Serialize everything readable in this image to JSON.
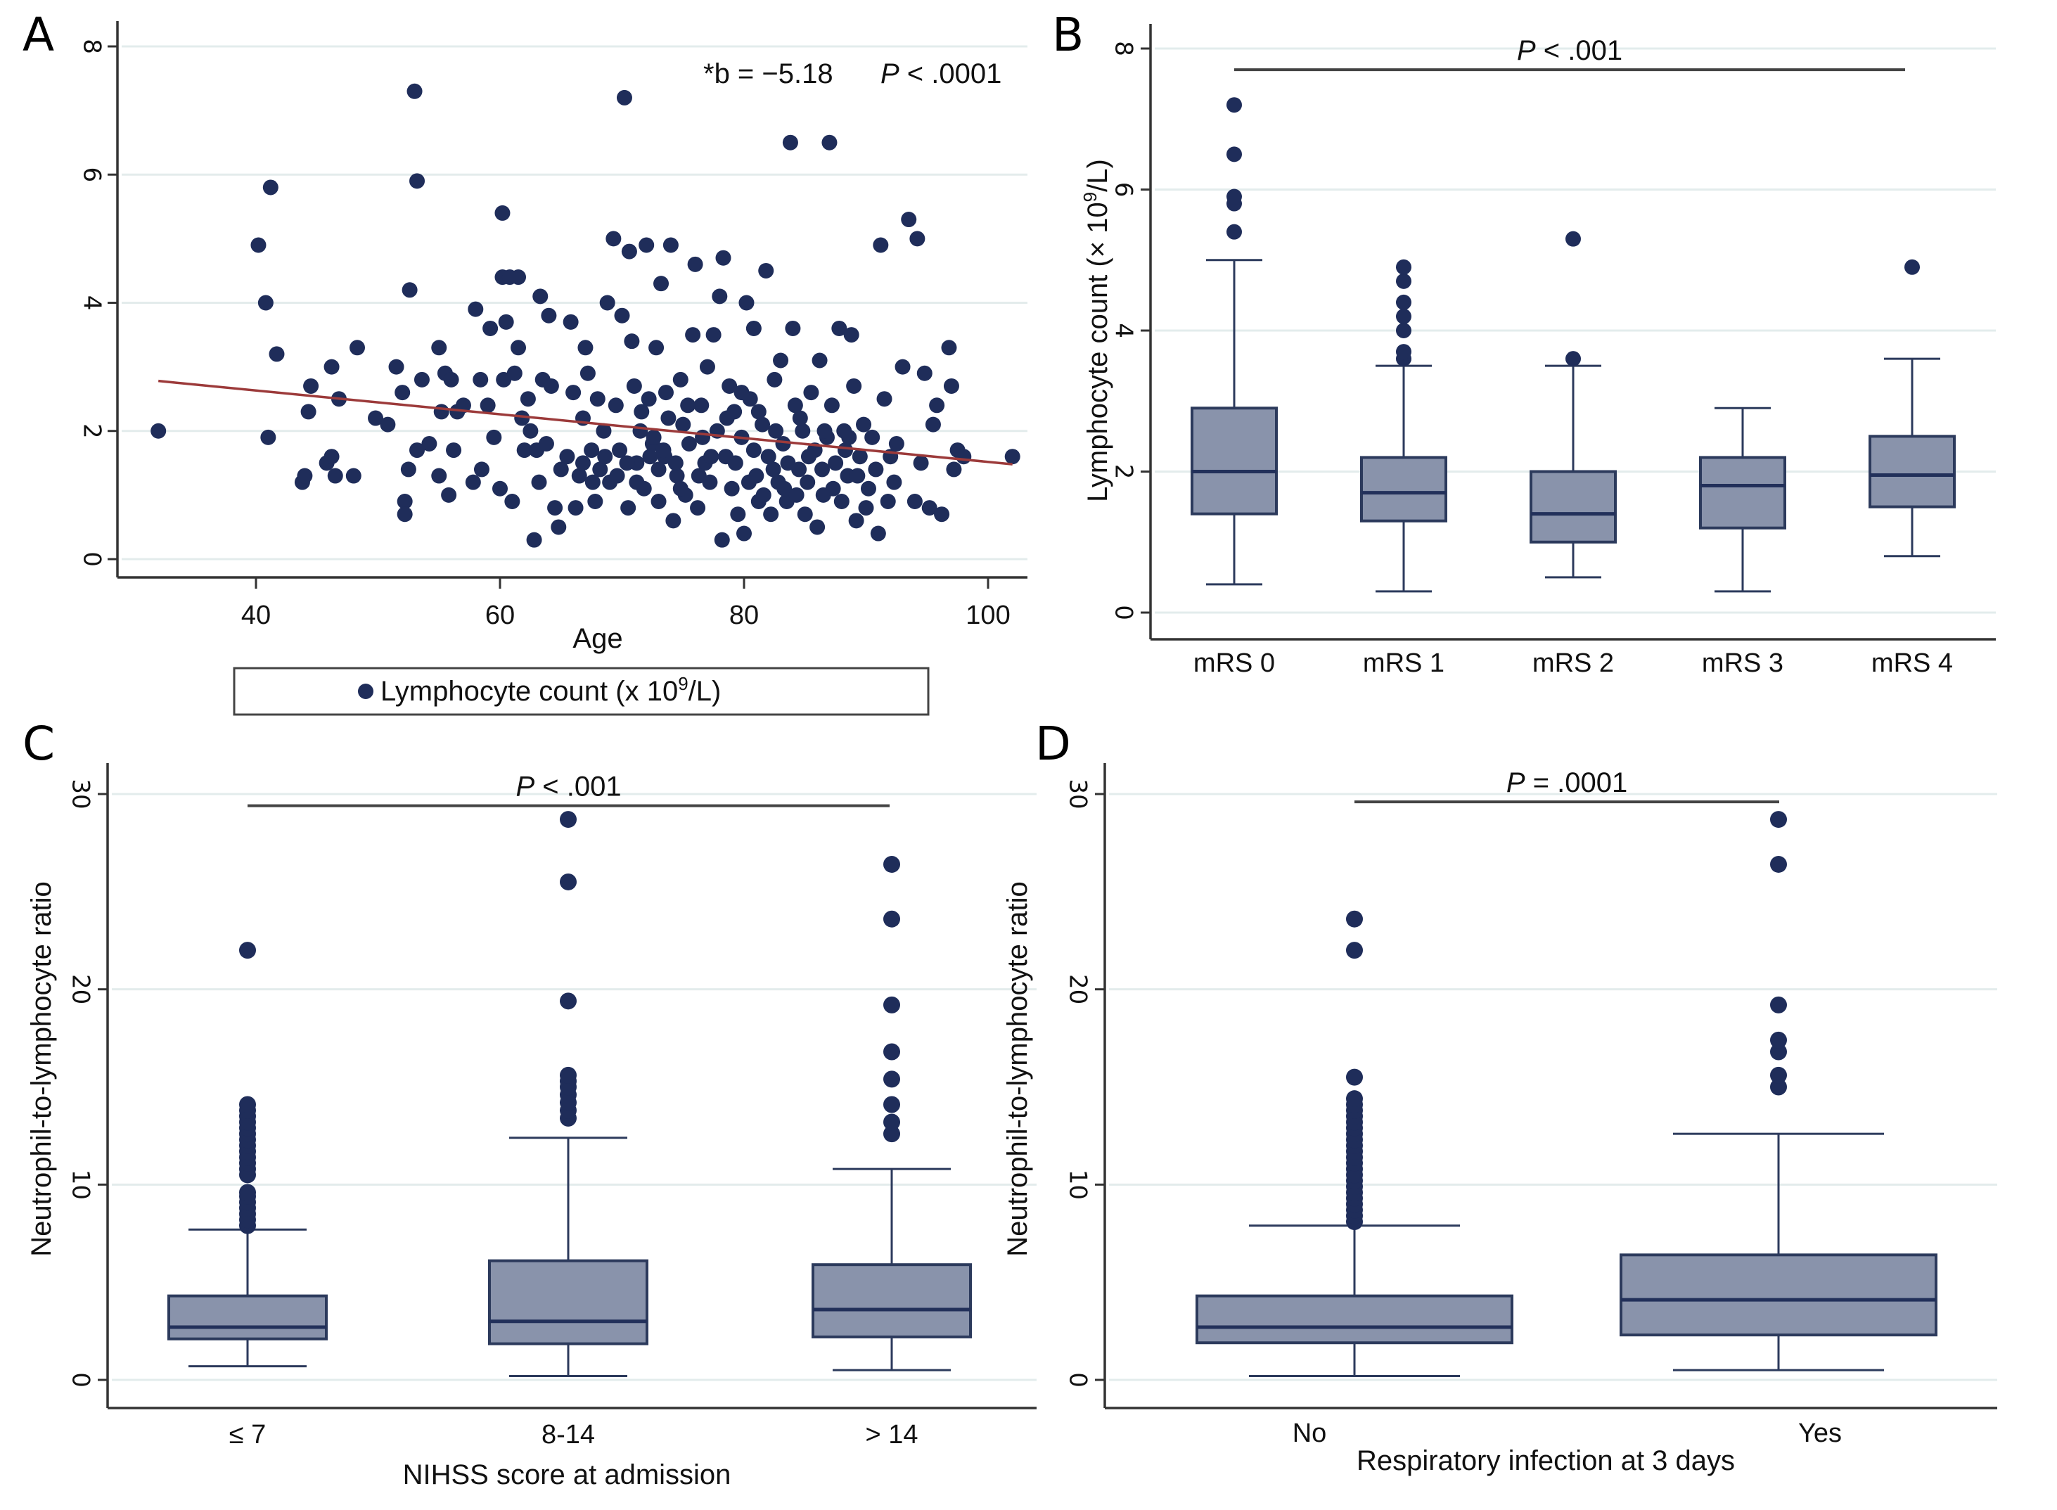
{
  "chart_data": [
    {
      "panel": "A",
      "type": "scatter",
      "xlabel": "Age",
      "ylabel": "",
      "xlim": [
        30,
        103
      ],
      "ylim": [
        -0.2,
        8.2
      ],
      "xticks": [
        "40",
        "60",
        "80",
        "100"
      ],
      "yticks": [
        "0",
        "2",
        "4",
        "6",
        "8"
      ],
      "grid": true,
      "annotation_b": "*b = −5.18",
      "annotation_p_italic": "P",
      "annotation_p_rest": "< .0001",
      "legend": {
        "label_pre": "Lymphocyte count (x 10",
        "label_sup": "9",
        "label_post": "/L)",
        "placement": "bottom"
      },
      "regression": {
        "x": [
          32,
          102
        ],
        "y": [
          2.78,
          1.48
        ]
      },
      "points": [
        [
          32,
          2.0
        ],
        [
          40.2,
          4.9
        ],
        [
          40.8,
          4.0
        ],
        [
          41,
          1.9
        ],
        [
          41.2,
          5.8
        ],
        [
          41.7,
          3.2
        ],
        [
          43.8,
          1.2
        ],
        [
          44,
          1.3
        ],
        [
          44.3,
          2.3
        ],
        [
          44.5,
          2.7
        ],
        [
          45.8,
          1.5
        ],
        [
          46.2,
          3.0
        ],
        [
          46.2,
          1.6
        ],
        [
          46.5,
          1.3
        ],
        [
          46.8,
          2.5
        ],
        [
          48,
          1.3
        ],
        [
          48.3,
          3.3
        ],
        [
          49.8,
          2.2
        ],
        [
          50.8,
          2.1
        ],
        [
          51.5,
          3.0
        ],
        [
          52,
          2.6
        ],
        [
          52.2,
          0.9
        ],
        [
          52.2,
          0.7
        ],
        [
          52.5,
          1.4
        ],
        [
          52.6,
          4.2
        ],
        [
          53,
          7.3
        ],
        [
          53.2,
          5.9
        ],
        [
          53.2,
          1.7
        ],
        [
          53.6,
          2.8
        ],
        [
          54.2,
          1.8
        ],
        [
          55,
          3.3
        ],
        [
          55,
          1.3
        ],
        [
          55.2,
          2.3
        ],
        [
          55.5,
          2.9
        ],
        [
          55.8,
          1.0
        ],
        [
          56,
          2.8
        ],
        [
          56.2,
          1.7
        ],
        [
          56.5,
          2.3
        ],
        [
          57,
          2.4
        ],
        [
          57.8,
          1.2
        ],
        [
          58,
          3.9
        ],
        [
          58.4,
          2.8
        ],
        [
          58.5,
          1.4
        ],
        [
          59,
          2.4
        ],
        [
          59.2,
          3.6
        ],
        [
          59.5,
          1.9
        ],
        [
          60,
          1.1
        ],
        [
          60.2,
          4.4
        ],
        [
          60.2,
          5.4
        ],
        [
          60.3,
          2.8
        ],
        [
          60.5,
          3.7
        ],
        [
          60.8,
          4.4
        ],
        [
          61,
          0.9
        ],
        [
          61.2,
          2.9
        ],
        [
          61.5,
          4.4
        ],
        [
          61.5,
          3.3
        ],
        [
          61.8,
          2.2
        ],
        [
          62,
          1.7
        ],
        [
          62.3,
          2.5
        ],
        [
          62.5,
          2.0
        ],
        [
          62.8,
          0.3
        ],
        [
          63,
          1.7
        ],
        [
          63.2,
          1.2
        ],
        [
          63.3,
          4.1
        ],
        [
          63.5,
          2.8
        ],
        [
          63.8,
          1.8
        ],
        [
          64,
          3.8
        ],
        [
          64.2,
          2.7
        ],
        [
          64.5,
          0.8
        ],
        [
          64.8,
          0.5
        ],
        [
          65,
          1.4
        ],
        [
          65.5,
          1.6
        ],
        [
          65.8,
          3.7
        ],
        [
          66,
          2.6
        ],
        [
          66.2,
          0.8
        ],
        [
          66.5,
          1.3
        ],
        [
          66.8,
          2.2
        ],
        [
          67,
          3.3
        ],
        [
          67.2,
          2.9
        ],
        [
          67.5,
          1.7
        ],
        [
          67.8,
          0.9
        ],
        [
          68,
          2.5
        ],
        [
          68.2,
          1.4
        ],
        [
          68.5,
          2.0
        ],
        [
          68.8,
          4.0
        ],
        [
          69,
          1.2
        ],
        [
          69.3,
          5.0
        ],
        [
          69.5,
          2.4
        ],
        [
          69.8,
          1.7
        ],
        [
          70,
          3.8
        ],
        [
          70.2,
          7.2
        ],
        [
          70.5,
          0.8
        ],
        [
          70.6,
          4.8
        ],
        [
          70.8,
          3.4
        ],
        [
          71,
          2.7
        ],
        [
          71.2,
          1.5
        ],
        [
          71.5,
          2.0
        ],
        [
          71.8,
          1.1
        ],
        [
          72,
          4.9
        ],
        [
          72.2,
          2.5
        ],
        [
          72.5,
          1.8
        ],
        [
          72.8,
          3.3
        ],
        [
          73,
          0.9
        ],
        [
          73.2,
          4.3
        ],
        [
          73.5,
          1.6
        ],
        [
          73.8,
          2.2
        ],
        [
          74,
          4.9
        ],
        [
          74.2,
          0.6
        ],
        [
          74.5,
          1.3
        ],
        [
          74.8,
          2.8
        ],
        [
          75,
          2.1
        ],
        [
          75.2,
          1.0
        ],
        [
          75.5,
          1.8
        ],
        [
          75.8,
          3.5
        ],
        [
          76,
          4.6
        ],
        [
          76.2,
          0.8
        ],
        [
          76.5,
          2.4
        ],
        [
          76.8,
          1.5
        ],
        [
          77,
          3.0
        ],
        [
          77.2,
          1.2
        ],
        [
          77.5,
          3.5
        ],
        [
          77.8,
          2.0
        ],
        [
          78,
          4.1
        ],
        [
          78.2,
          0.3
        ],
        [
          78.3,
          4.7
        ],
        [
          78.5,
          1.6
        ],
        [
          78.8,
          2.7
        ],
        [
          79,
          1.1
        ],
        [
          79.2,
          2.3
        ],
        [
          79.5,
          0.7
        ],
        [
          79.8,
          1.9
        ],
        [
          80,
          0.4
        ],
        [
          80.2,
          4.0
        ],
        [
          80.5,
          2.5
        ],
        [
          80.8,
          3.6
        ],
        [
          81,
          1.3
        ],
        [
          81.2,
          0.9
        ],
        [
          81.5,
          2.1
        ],
        [
          81.8,
          4.5
        ],
        [
          82,
          1.6
        ],
        [
          82.2,
          0.7
        ],
        [
          82.5,
          2.8
        ],
        [
          82.8,
          1.2
        ],
        [
          83,
          3.1
        ],
        [
          83.2,
          1.8
        ],
        [
          83.5,
          0.9
        ],
        [
          83.8,
          6.5
        ],
        [
          84,
          3.6
        ],
        [
          84.2,
          2.4
        ],
        [
          84.5,
          1.4
        ],
        [
          84.8,
          2.0
        ],
        [
          85,
          0.7
        ],
        [
          85.2,
          1.2
        ],
        [
          85.5,
          2.6
        ],
        [
          85.8,
          1.7
        ],
        [
          86,
          0.5
        ],
        [
          86.2,
          3.1
        ],
        [
          86.5,
          1.0
        ],
        [
          86.8,
          1.9
        ],
        [
          87,
          6.5
        ],
        [
          87.2,
          2.4
        ],
        [
          87.5,
          1.5
        ],
        [
          87.8,
          3.6
        ],
        [
          88,
          0.9
        ],
        [
          88.2,
          2.0
        ],
        [
          88.5,
          1.3
        ],
        [
          88.8,
          3.5
        ],
        [
          89,
          2.7
        ],
        [
          89.2,
          0.6
        ],
        [
          89.5,
          1.6
        ],
        [
          89.8,
          2.1
        ],
        [
          90,
          0.8
        ],
        [
          90.2,
          1.1
        ],
        [
          90.5,
          1.9
        ],
        [
          90.8,
          1.4
        ],
        [
          91,
          0.4
        ],
        [
          91.2,
          4.9
        ],
        [
          91.5,
          2.5
        ],
        [
          91.8,
          0.9
        ],
        [
          92,
          1.6
        ],
        [
          92.3,
          1.2
        ],
        [
          92.5,
          1.8
        ],
        [
          93,
          3.0
        ],
        [
          93.5,
          5.3
        ],
        [
          94,
          0.9
        ],
        [
          94.2,
          5.0
        ],
        [
          94.5,
          1.5
        ],
        [
          94.8,
          2.9
        ],
        [
          95.2,
          0.8
        ],
        [
          95.5,
          2.1
        ],
        [
          95.8,
          2.4
        ],
        [
          96.2,
          0.7
        ],
        [
          96.8,
          3.3
        ],
        [
          97,
          2.7
        ],
        [
          97.2,
          1.4
        ],
        [
          97.5,
          1.7
        ],
        [
          98,
          1.6
        ],
        [
          102,
          1.6
        ],
        [
          72.3,
          1.6
        ],
        [
          72.6,
          1.9
        ],
        [
          73,
          1.4
        ],
        [
          73.4,
          1.7
        ],
        [
          74.4,
          1.5
        ],
        [
          74.8,
          1.1
        ],
        [
          76.3,
          1.3
        ],
        [
          77.3,
          1.6
        ],
        [
          79.3,
          1.5
        ],
        [
          80.4,
          1.2
        ],
        [
          80.8,
          1.7
        ],
        [
          81.6,
          1.0
        ],
        [
          82.4,
          1.4
        ],
        [
          83.3,
          1.1
        ],
        [
          83.6,
          1.5
        ],
        [
          84.3,
          1.0
        ],
        [
          85.3,
          1.6
        ],
        [
          86.4,
          1.4
        ],
        [
          87.3,
          1.1
        ],
        [
          88.3,
          1.7
        ],
        [
          89.3,
          1.3
        ],
        [
          66.8,
          1.5
        ],
        [
          67.6,
          1.2
        ],
        [
          68.6,
          1.6
        ],
        [
          69.6,
          1.3
        ],
        [
          70.4,
          1.5
        ],
        [
          71.2,
          1.2
        ],
        [
          78.6,
          2.2
        ],
        [
          79.8,
          2.6
        ],
        [
          81.2,
          2.3
        ],
        [
          82.6,
          2.0
        ],
        [
          84.6,
          2.2
        ],
        [
          86.6,
          2.0
        ],
        [
          88.6,
          1.9
        ],
        [
          76.6,
          1.9
        ],
        [
          75.4,
          2.4
        ],
        [
          73.6,
          2.6
        ],
        [
          71.6,
          2.3
        ]
      ]
    },
    {
      "panel": "B",
      "type": "box",
      "xlabel": "",
      "ylabel_pre": "Lymphocyte count (× 10",
      "ylabel_sup": "9",
      "ylabel_post": "/L)",
      "ylim": [
        -0.4,
        8.3
      ],
      "yticks": [
        "0",
        "2",
        "4",
        "6",
        "8"
      ],
      "grid": true,
      "p_italic": "P",
      "p_rest": "< .001",
      "p_bar_y": 7.7,
      "categories": [
        "mRS 0",
        "mRS 1",
        "mRS 2",
        "mRS 3",
        "mRS 4"
      ],
      "boxes": [
        {
          "lw": 0.4,
          "q1": 1.4,
          "median": 2.0,
          "q3": 2.9,
          "uw": 5.0,
          "outliers": [
            5.4,
            5.8,
            5.9,
            6.5,
            7.2
          ]
        },
        {
          "lw": 0.3,
          "q1": 1.3,
          "median": 1.7,
          "q3": 2.2,
          "uw": 3.5,
          "outliers": [
            3.6,
            3.7,
            4.0,
            4.2,
            4.4,
            4.7,
            4.9
          ]
        },
        {
          "lw": 0.5,
          "q1": 1.0,
          "median": 1.4,
          "q3": 2.0,
          "uw": 3.5,
          "outliers": [
            3.6,
            5.3
          ]
        },
        {
          "lw": 0.3,
          "q1": 1.2,
          "median": 1.8,
          "q3": 2.2,
          "uw": 2.9,
          "outliers": []
        },
        {
          "lw": 0.8,
          "q1": 1.5,
          "median": 1.95,
          "q3": 2.5,
          "uw": 3.6,
          "outliers": [
            4.9
          ]
        }
      ]
    },
    {
      "panel": "C",
      "type": "box",
      "xlabel": "NIHSS score at admission",
      "ylabel": "Neutrophil-to-lymphocyte ratio",
      "ylim": [
        -1.4,
        31.5
      ],
      "yticks": [
        "0",
        "10",
        "20",
        "30"
      ],
      "grid": true,
      "p_italic": "P",
      "p_rest": "< .001",
      "p_bar_y": 29.4,
      "categories": [
        "≤ 7",
        "8-14",
        "> 14"
      ],
      "boxes": [
        {
          "lw": 0.7,
          "q1": 2.1,
          "median": 2.7,
          "q3": 4.3,
          "uw": 7.7,
          "outliers": [
            7.9,
            8.2,
            8.5,
            8.8,
            9.1,
            9.4,
            9.6,
            10.5,
            10.8,
            11.1,
            11.4,
            11.7,
            12.0,
            12.3,
            12.6,
            12.9,
            13.2,
            13.5,
            13.8,
            14.1,
            22.0
          ]
        },
        {
          "lw": 0.2,
          "q1": 1.85,
          "median": 3.0,
          "q3": 6.1,
          "uw": 12.4,
          "outliers": [
            13.4,
            13.8,
            14.2,
            14.6,
            15.0,
            15.3,
            15.6,
            19.4,
            25.5,
            28.7
          ]
        },
        {
          "lw": 0.5,
          "q1": 2.2,
          "median": 3.6,
          "q3": 5.9,
          "uw": 10.8,
          "outliers": [
            12.6,
            13.2,
            14.1,
            15.4,
            16.8,
            19.2,
            23.6,
            26.4
          ]
        }
      ]
    },
    {
      "panel": "D",
      "type": "box",
      "xlabel": "Respiratory infection at 3 days",
      "ylabel": "Neutrophil-to-lymphocyte ratio",
      "ylim": [
        -1.4,
        31.5
      ],
      "yticks": [
        "0",
        "10",
        "20",
        "30"
      ],
      "grid": true,
      "p_italic": "P",
      "p_rest": "= .0001",
      "p_bar_y": 29.6,
      "categories": [
        "No",
        "Yes"
      ],
      "boxes": [
        {
          "lw": 0.2,
          "q1": 1.9,
          "median": 2.7,
          "q3": 4.3,
          "uw": 7.9,
          "outliers": [
            8.1,
            8.4,
            8.7,
            9.0,
            9.3,
            9.6,
            9.9,
            10.2,
            10.5,
            10.8,
            11.1,
            11.4,
            11.7,
            12.0,
            12.3,
            12.6,
            12.9,
            13.2,
            13.5,
            13.8,
            14.1,
            14.4,
            15.5,
            22.0,
            23.6
          ]
        },
        {
          "lw": 0.5,
          "q1": 2.3,
          "median": 4.1,
          "q3": 6.4,
          "uw": 12.6,
          "outliers": [
            15.0,
            15.6,
            16.8,
            17.4,
            19.2,
            26.4,
            28.7
          ]
        }
      ]
    }
  ],
  "colors": {
    "dot": "#1f2d5a",
    "box_fill": "#8993ab",
    "box_line": "#2c3a5c",
    "regression": "#9c3a3a",
    "grid": "#e3ecec"
  }
}
